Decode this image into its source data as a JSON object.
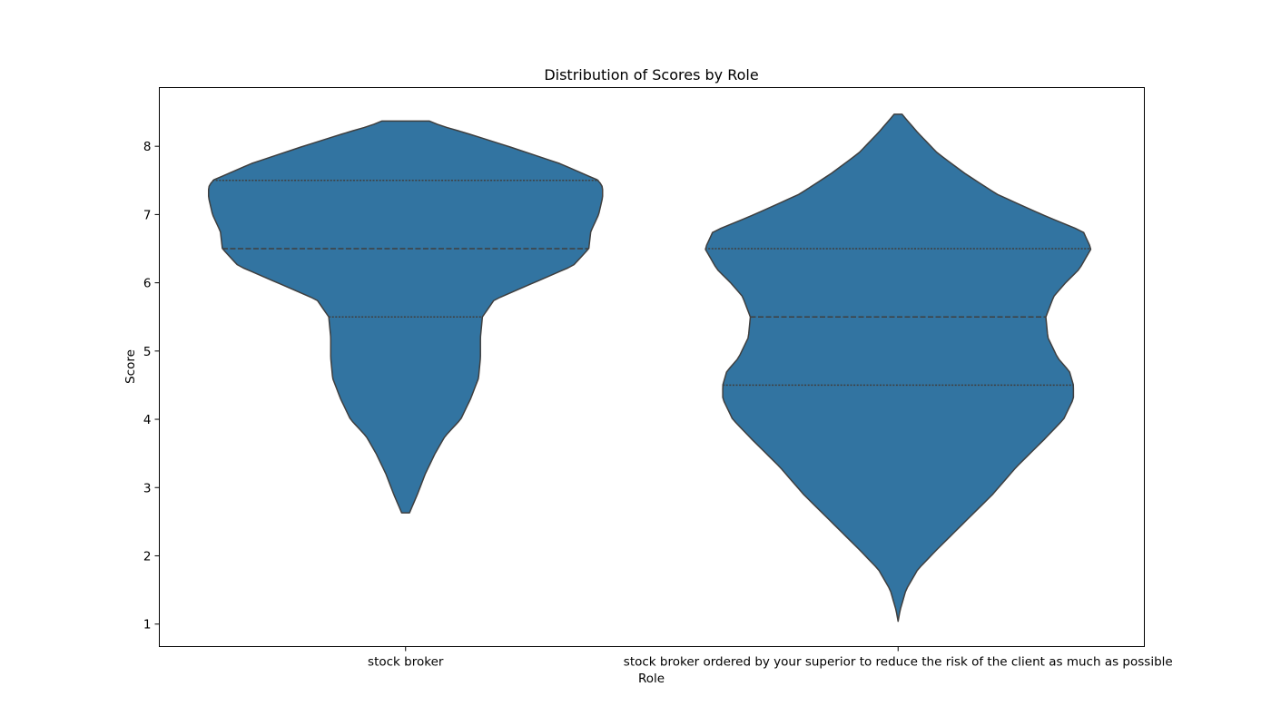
{
  "chart_data": {
    "type": "violin",
    "title": "Distribution of Scores by Role",
    "xlabel": "Role",
    "ylabel": "Score",
    "ylim": [
      0.67,
      8.86
    ],
    "yticks": [
      1,
      2,
      3,
      4,
      5,
      6,
      7,
      8
    ],
    "grid": false,
    "inner": "quartile",
    "color": "#3274a1",
    "edge_color": "#3f3f3f",
    "categories": [
      "stock broker",
      "stock broker ordered by your superior to reduce the risk of the client as much as possible"
    ],
    "violins": [
      {
        "category": "stock broker",
        "y_min": 2.63,
        "y_max": 8.37,
        "quartiles": [
          5.5,
          6.5,
          7.5
        ],
        "density": [
          [
            2.63,
            0.02
          ],
          [
            2.9,
            0.06
          ],
          [
            3.2,
            0.1
          ],
          [
            3.5,
            0.15
          ],
          [
            3.75,
            0.2
          ],
          [
            4.0,
            0.28
          ],
          [
            4.3,
            0.33
          ],
          [
            4.6,
            0.37
          ],
          [
            4.9,
            0.38
          ],
          [
            5.2,
            0.38
          ],
          [
            5.5,
            0.39
          ],
          [
            5.75,
            0.45
          ],
          [
            6.0,
            0.65
          ],
          [
            6.25,
            0.85
          ],
          [
            6.5,
            0.93
          ],
          [
            6.75,
            0.94
          ],
          [
            7.0,
            0.98
          ],
          [
            7.25,
            1.0
          ],
          [
            7.4,
            1.0
          ],
          [
            7.5,
            0.98
          ],
          [
            7.75,
            0.78
          ],
          [
            8.0,
            0.52
          ],
          [
            8.2,
            0.3
          ],
          [
            8.3,
            0.18
          ],
          [
            8.37,
            0.12
          ]
        ]
      },
      {
        "category": "stock broker ordered by your superior to reduce the risk of the client as much as possible",
        "y_min": 1.04,
        "y_max": 8.47,
        "quartiles": [
          4.5,
          5.5,
          6.5
        ],
        "density": [
          [
            1.04,
            0.0
          ],
          [
            1.2,
            0.01
          ],
          [
            1.5,
            0.04
          ],
          [
            1.8,
            0.1
          ],
          [
            2.1,
            0.2
          ],
          [
            2.5,
            0.34
          ],
          [
            2.9,
            0.48
          ],
          [
            3.3,
            0.6
          ],
          [
            3.7,
            0.74
          ],
          [
            4.0,
            0.84
          ],
          [
            4.3,
            0.89
          ],
          [
            4.5,
            0.89
          ],
          [
            4.7,
            0.87
          ],
          [
            4.9,
            0.81
          ],
          [
            5.2,
            0.76
          ],
          [
            5.5,
            0.75
          ],
          [
            5.8,
            0.79
          ],
          [
            6.0,
            0.85
          ],
          [
            6.2,
            0.92
          ],
          [
            6.5,
            0.98
          ],
          [
            6.75,
            0.94
          ],
          [
            7.0,
            0.73
          ],
          [
            7.3,
            0.5
          ],
          [
            7.6,
            0.34
          ],
          [
            7.9,
            0.2
          ],
          [
            8.2,
            0.1
          ],
          [
            8.4,
            0.04
          ],
          [
            8.47,
            0.02
          ]
        ]
      }
    ]
  }
}
